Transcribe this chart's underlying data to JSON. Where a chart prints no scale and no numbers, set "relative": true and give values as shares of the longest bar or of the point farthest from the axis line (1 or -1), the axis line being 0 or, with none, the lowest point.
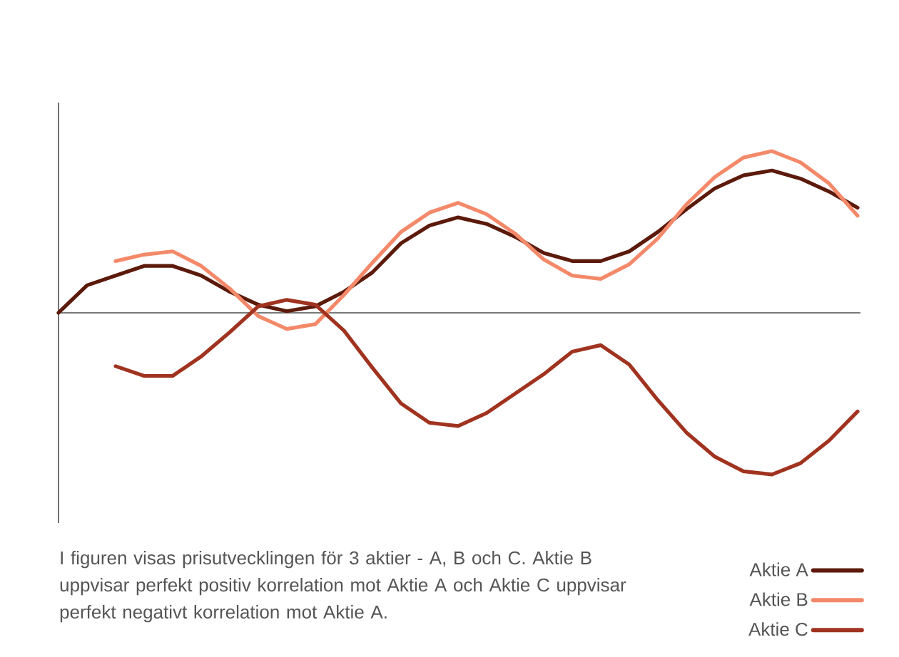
{
  "chart_data": {
    "type": "line",
    "relative": true,
    "legend": "bottom right",
    "categories": [
      null,
      null,
      null,
      null,
      null,
      null,
      null,
      null,
      null,
      null,
      null,
      null,
      null,
      null,
      null,
      null,
      null,
      null,
      null,
      null,
      null,
      null,
      null,
      null,
      null,
      null,
      null,
      null,
      null
    ],
    "series": [
      {
        "name": "Aktie A",
        "color": "#5c1a0b",
        "values": [
          0,
          0.17,
          0.23,
          0.29,
          0.29,
          0.23,
          0.13,
          0.05,
          0.01,
          0.04,
          0.13,
          0.25,
          0.43,
          0.54,
          0.59,
          0.55,
          0.47,
          0.37,
          0.32,
          0.32,
          0.38,
          0.5,
          0.64,
          0.77,
          0.85,
          0.88,
          0.83,
          0.75,
          0.65
        ]
      },
      {
        "name": "Aktie B",
        "color": "#f4896a",
        "values": [
          null,
          null,
          0.32,
          0.36,
          0.38,
          0.29,
          0.15,
          -0.02,
          -0.1,
          -0.07,
          0.11,
          0.31,
          0.5,
          0.62,
          0.68,
          0.61,
          0.49,
          0.33,
          0.23,
          0.21,
          0.3,
          0.46,
          0.67,
          0.84,
          0.96,
          1.0,
          0.93,
          0.8,
          0.6
        ]
      },
      {
        "name": "Aktie C",
        "color": "#a0331f",
        "values": [
          null,
          null,
          -0.33,
          -0.39,
          -0.39,
          -0.27,
          -0.12,
          0.04,
          0.08,
          0.05,
          -0.11,
          -0.34,
          -0.56,
          -0.68,
          -0.7,
          -0.62,
          -0.5,
          -0.38,
          -0.24,
          -0.2,
          -0.32,
          -0.54,
          -0.74,
          -0.89,
          -0.98,
          -1.0,
          -0.93,
          -0.79,
          -0.61
        ]
      }
    ],
    "annotations": [
      "I figuren visas prisutvecklingen för 3 aktier - A, B och C. Aktie B uppvisar perfekt positiv korrelation mot Aktie A och Aktie C uppvisar perfekt negativt korrelation mot Aktie A."
    ]
  }
}
